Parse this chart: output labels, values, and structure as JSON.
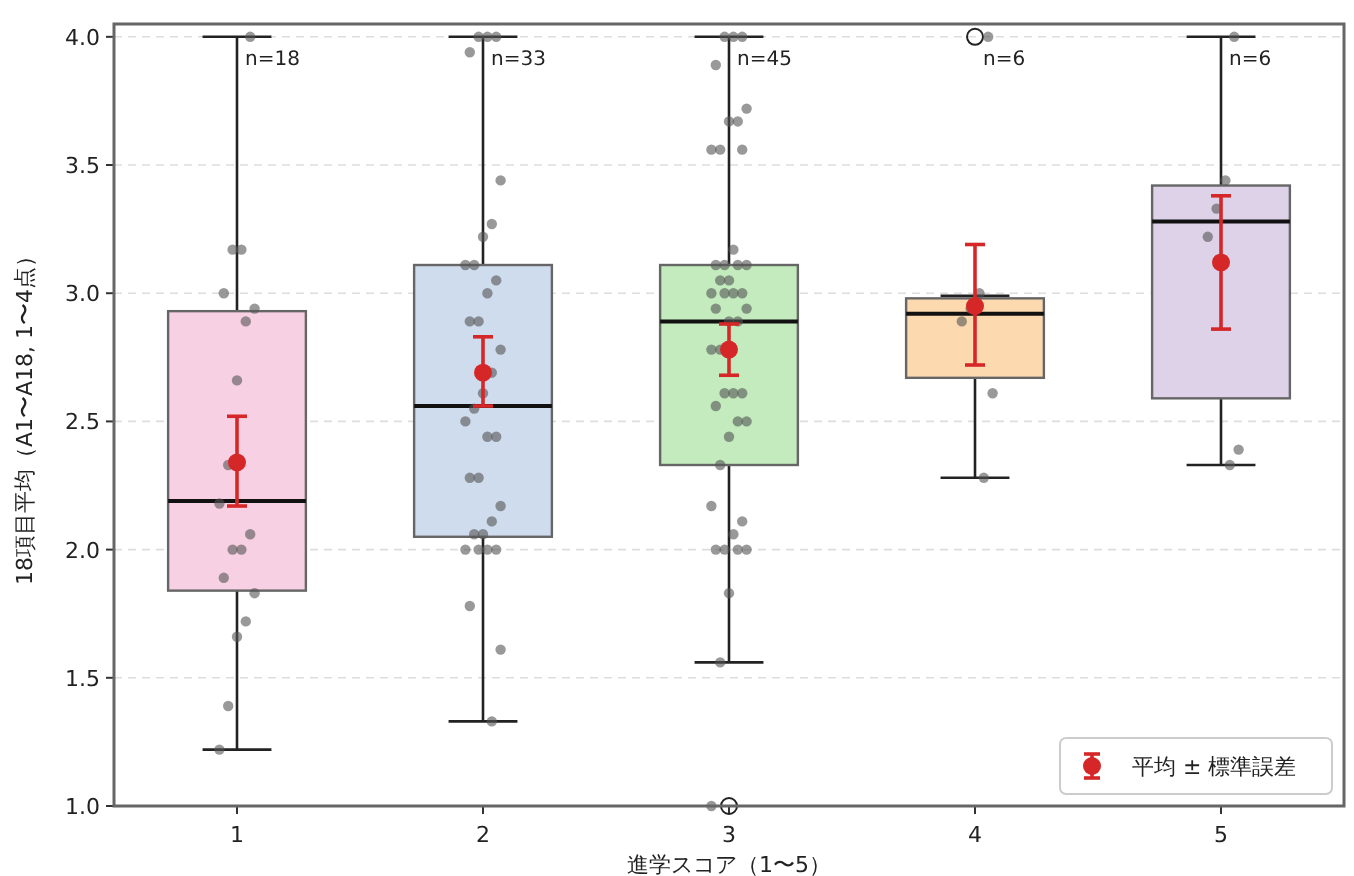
{
  "chart_data": {
    "type": "box",
    "xlabel": "進学スコア（1〜5）",
    "ylabel": "18項目平均（A1〜A18, 1〜4点）",
    "categories": [
      "1",
      "2",
      "3",
      "4",
      "5"
    ],
    "colors": [
      "#f7d0e3",
      "#cfdcee",
      "#c3ebbd",
      "#fdd9b0",
      "#ddd2e8"
    ],
    "boxes": [
      {
        "low": 1.22,
        "q1": 1.84,
        "median": 2.19,
        "q3": 2.93,
        "high": 4.0
      },
      {
        "low": 1.33,
        "q1": 2.05,
        "median": 2.56,
        "q3": 3.11,
        "high": 4.0
      },
      {
        "low": 1.56,
        "q1": 2.33,
        "median": 2.89,
        "q3": 3.11,
        "high": 4.0,
        "outliers": [
          1.0
        ]
      },
      {
        "low": 2.28,
        "q1": 2.67,
        "median": 2.92,
        "q3": 2.98,
        "high": 2.99,
        "outliers": [
          4.0
        ]
      },
      {
        "low": 2.33,
        "q1": 2.59,
        "median": 3.28,
        "q3": 3.42,
        "high": 4.0
      }
    ],
    "series": [
      {
        "type": "scatter",
        "marker": "circle",
        "color": "#555555",
        "x": [
          "1",
          "1",
          "1",
          "1",
          "1",
          "1",
          "1",
          "1",
          "1",
          "1",
          "1",
          "1",
          "1",
          "1",
          "1",
          "1",
          "1",
          "1",
          "2",
          "2",
          "2",
          "2",
          "2",
          "2",
          "2",
          "2",
          "2",
          "2",
          "2",
          "2",
          "2",
          "2",
          "2",
          "2",
          "2",
          "2",
          "2",
          "2",
          "2",
          "2",
          "2",
          "2",
          "2",
          "2",
          "2",
          "2",
          "2",
          "2",
          "2",
          "2",
          "2",
          "3",
          "3",
          "3",
          "3",
          "3",
          "3",
          "3",
          "3",
          "3",
          "3",
          "3",
          "3",
          "3",
          "3",
          "3",
          "3",
          "3",
          "3",
          "3",
          "3",
          "3",
          "3",
          "3",
          "3",
          "3",
          "3",
          "3",
          "3",
          "3",
          "3",
          "3",
          "3",
          "3",
          "3",
          "3",
          "3",
          "3",
          "3",
          "3",
          "3",
          "3",
          "3",
          "3",
          "3",
          "3",
          "4",
          "4",
          "4",
          "4",
          "4",
          "4",
          "5",
          "5",
          "5",
          "5",
          "5",
          "5"
        ],
        "values": [
          4.0,
          3.17,
          3.17,
          3.0,
          2.94,
          2.89,
          2.66,
          2.33,
          2.18,
          2.06,
          2.0,
          2.0,
          1.89,
          1.83,
          1.72,
          1.66,
          1.39,
          1.22,
          4.0,
          4.0,
          4.0,
          3.94,
          3.44,
          3.27,
          3.22,
          3.11,
          3.11,
          3.05,
          3.0,
          2.89,
          2.89,
          2.78,
          2.69,
          2.61,
          2.55,
          2.5,
          2.44,
          2.44,
          2.28,
          2.28,
          2.17,
          2.11,
          2.06,
          2.06,
          2.0,
          2.0,
          2.0,
          2.0,
          1.78,
          1.61,
          1.33,
          4.0,
          4.0,
          4.0,
          3.89,
          3.72,
          3.67,
          3.67,
          3.56,
          3.56,
          3.56,
          3.17,
          3.11,
          3.11,
          3.11,
          3.11,
          3.05,
          3.05,
          3.0,
          3.0,
          3.0,
          3.0,
          2.94,
          2.94,
          2.89,
          2.89,
          2.78,
          2.78,
          2.61,
          2.61,
          2.61,
          2.56,
          2.5,
          2.5,
          2.44,
          2.33,
          2.17,
          2.11,
          2.06,
          2.0,
          2.0,
          2.0,
          2.0,
          1.83,
          1.56,
          1.0,
          4.0,
          3.0,
          2.94,
          2.89,
          2.61,
          2.28,
          4.0,
          3.44,
          3.33,
          3.22,
          2.39,
          2.33
        ]
      },
      {
        "type": "scatter",
        "marker": "circle",
        "name": "平均 ± 標準誤差",
        "color": "#d62728",
        "x": [
          "1",
          "2",
          "3",
          "4",
          "5"
        ],
        "values": [
          2.34,
          2.69,
          2.78,
          2.95,
          3.12
        ],
        "errors": [
          [
            2.17,
            2.52
          ],
          [
            2.56,
            2.83
          ],
          [
            2.68,
            2.88
          ],
          [
            2.72,
            3.19
          ],
          [
            2.86,
            3.38
          ]
        ]
      }
    ],
    "annotations": [
      {
        "text": "n=18",
        "x": "1",
        "y": 4.0
      },
      {
        "text": "n=33",
        "x": "2",
        "y": 4.0
      },
      {
        "text": "n=45",
        "x": "3",
        "y": 4.0
      },
      {
        "text": "n=6",
        "x": "4",
        "y": 4.0
      },
      {
        "text": "n=6",
        "x": "5",
        "y": 4.0
      }
    ],
    "ylim": [
      1.0,
      4.05
    ],
    "yticks": [
      {
        "value": 1.0,
        "label": "1.0"
      },
      {
        "value": 1.5,
        "label": "1.5"
      },
      {
        "value": 2.0,
        "label": "2.0"
      },
      {
        "value": 2.5,
        "label": "2.5"
      },
      {
        "value": 3.0,
        "label": "3.0"
      },
      {
        "value": 3.5,
        "label": "3.5"
      },
      {
        "value": 4.0,
        "label": "4.0"
      }
    ],
    "grid": "y",
    "legend": "bottom right"
  }
}
